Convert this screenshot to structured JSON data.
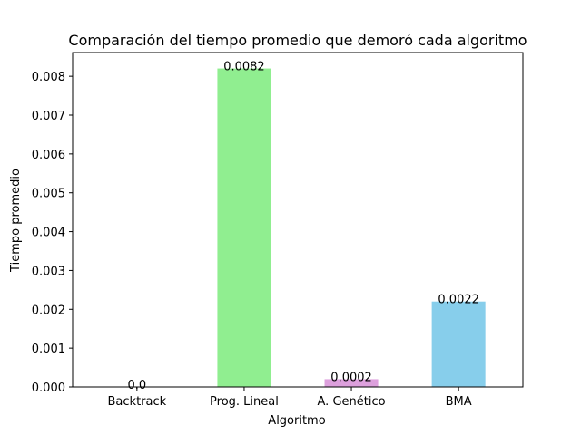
{
  "chart_data": {
    "type": "bar",
    "title": "Comparación del tiempo promedio que demoró cada algoritmo",
    "xlabel": "Algoritmo",
    "ylabel": "Tiempo promedio",
    "categories": [
      "Backtrack",
      "Prog. Lineal",
      "A. Genético",
      "BMA"
    ],
    "values": [
      0.0,
      0.0082,
      0.0002,
      0.0022
    ],
    "data_labels": [
      "0.0",
      "0.0082",
      "0.0002",
      "0.0022"
    ],
    "colors": [
      "#1f77b4",
      "#90ee90",
      "#dda0dd",
      "#87ceeb"
    ],
    "ylim": [
      0,
      0.00861
    ],
    "yticks": [
      0.0,
      0.001,
      0.002,
      0.003,
      0.004,
      0.005,
      0.006,
      0.007,
      0.008
    ],
    "ytick_labels": [
      "0.000",
      "0.001",
      "0.002",
      "0.003",
      "0.004",
      "0.005",
      "0.006",
      "0.007",
      "0.008"
    ],
    "grid": false,
    "legend": "none"
  }
}
